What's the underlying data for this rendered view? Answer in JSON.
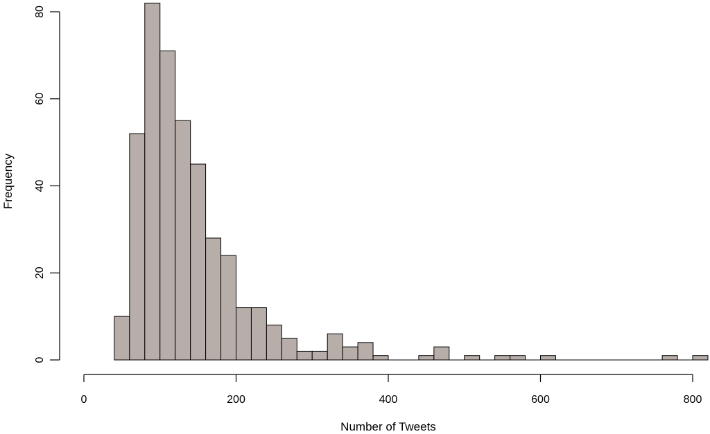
{
  "chart_data": {
    "type": "bar",
    "subtype": "histogram",
    "xlabel": "Number of Tweets",
    "ylabel": "Frequency",
    "xlim": [
      0,
      800
    ],
    "ylim": [
      0,
      80
    ],
    "x_ticks": [
      0,
      200,
      400,
      600,
      800
    ],
    "y_ticks": [
      0,
      20,
      40,
      60,
      80
    ],
    "x_tick_labels": [
      "0",
      "200",
      "400",
      "600",
      "800"
    ],
    "y_tick_labels": [
      "0",
      "20",
      "40",
      "60",
      "80"
    ],
    "bin_width": 20,
    "bin_starts": [
      40,
      60,
      80,
      100,
      120,
      140,
      160,
      180,
      200,
      220,
      240,
      260,
      280,
      300,
      320,
      340,
      360,
      380,
      400,
      420,
      440,
      460,
      480,
      500,
      520,
      540,
      560,
      580,
      600,
      620,
      640,
      660,
      680,
      700,
      720,
      740,
      760,
      780,
      800
    ],
    "values": [
      10,
      52,
      82,
      71,
      55,
      45,
      28,
      24,
      12,
      12,
      8,
      5,
      2,
      2,
      6,
      3,
      4,
      1,
      0,
      0,
      1,
      3,
      0,
      1,
      0,
      1,
      1,
      0,
      1,
      0,
      0,
      0,
      0,
      0,
      0,
      0,
      1,
      0,
      1
    ],
    "bar_fill": "#b8aea9",
    "bar_stroke": "#000000",
    "grid": false,
    "legend": "none"
  }
}
